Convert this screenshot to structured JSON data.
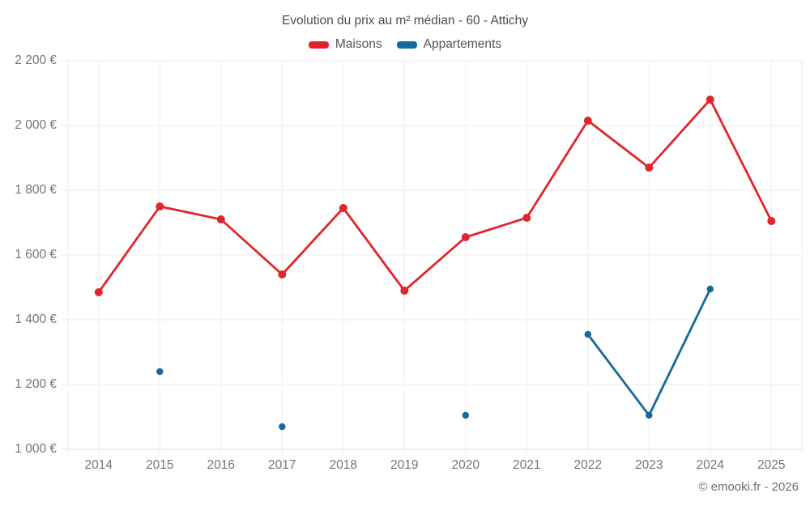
{
  "chart_data": {
    "type": "line",
    "title": "Evolution du prix au m² médian - 60 - Attichy",
    "categories": [
      "2014",
      "2015",
      "2016",
      "2017",
      "2018",
      "2019",
      "2020",
      "2021",
      "2022",
      "2023",
      "2024",
      "2025"
    ],
    "series": [
      {
        "name": "Maisons",
        "color": "#e0252d",
        "values": [
          1485,
          1750,
          1710,
          1540,
          1745,
          1490,
          1655,
          1715,
          2015,
          1870,
          2080,
          1705
        ]
      },
      {
        "name": "Appartements",
        "color": "#16699d",
        "values": [
          null,
          1240,
          null,
          1070,
          null,
          null,
          1105,
          null,
          1355,
          1105,
          1495,
          null
        ]
      }
    ],
    "xlabel": "",
    "ylabel": "",
    "ylim": [
      1000,
      2200
    ],
    "y_ticks": [
      1000,
      1200,
      1400,
      1600,
      1800,
      2000,
      2200
    ],
    "y_tick_labels": [
      "1 000 €",
      "1 200 €",
      "1 400 €",
      "1 600 €",
      "1 800 €",
      "2 000 €",
      "2 200 €"
    ],
    "grid": true,
    "legend_position": "top"
  },
  "theme": {
    "grid_color": "#ededed",
    "axis_line_color": "#dedede",
    "tick_label_color": "#757575"
  },
  "footer": {
    "copyright": "© emooki.fr - 2026"
  }
}
